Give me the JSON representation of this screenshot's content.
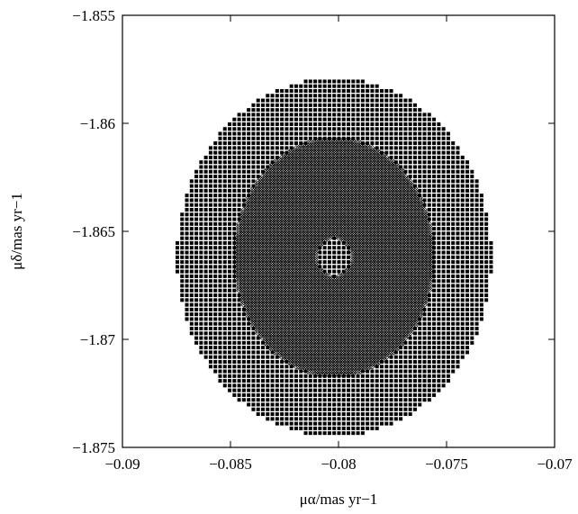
{
  "chart_data": {
    "type": "scatter",
    "title": "",
    "xlabel": "μα/mas yr−1",
    "ylabel": "μδ/mas yr−1",
    "xlim": [
      -0.09,
      -0.07
    ],
    "ylim": [
      -1.875,
      -1.855
    ],
    "xticks": [
      -0.09,
      -0.085,
      -0.08,
      -0.075,
      -0.07
    ],
    "xtick_labels": [
      "−0.09",
      "−0.085",
      "−0.08",
      "−0.075",
      "−0.07"
    ],
    "yticks": [
      -1.875,
      -1.87,
      -1.865,
      -1.86,
      -1.855
    ],
    "ytick_labels": [
      "−1.875",
      "−1.87",
      "−1.865",
      "−1.86",
      "−1.855"
    ],
    "grid": false,
    "regions": [
      {
        "name": "outer ring",
        "marker": "filled-square",
        "center": [
          -0.0802,
          -1.8662
        ],
        "semi_axis_x": 0.0073,
        "semi_axis_y": 0.0083,
        "inner_semi_axis_x": 0.0046,
        "inner_semi_axis_y": 0.0055,
        "grid_step": [
          0.00022,
          0.00022
        ]
      },
      {
        "name": "middle ring",
        "marker": "hollow-diamond",
        "center": [
          -0.0802,
          -1.8662
        ],
        "semi_axis_x": 0.0046,
        "semi_axis_y": 0.0055,
        "inner_semi_axis_x": 0.0008,
        "inner_semi_axis_y": 0.0009,
        "grid_step": [
          0.00011,
          0.00011
        ]
      },
      {
        "name": "core",
        "marker": "filled-square",
        "center": [
          -0.0802,
          -1.8662
        ],
        "semi_axis_x": 0.0008,
        "semi_axis_y": 0.0009,
        "grid_step": [
          0.00022,
          0.00022
        ]
      }
    ]
  }
}
